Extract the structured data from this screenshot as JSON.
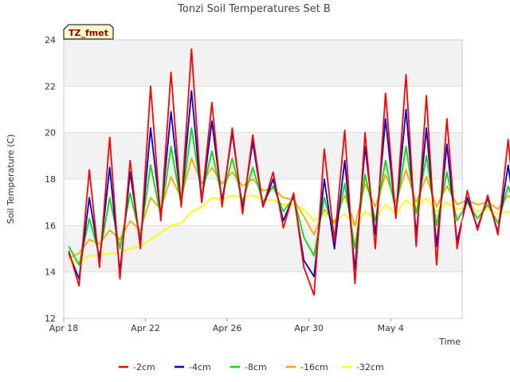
{
  "chart_data": {
    "type": "line",
    "title": "Tonzi Soil Temperatures Set B",
    "xlabel": "Time",
    "ylabel": "Soil Temperature (C)",
    "badge": "TZ_fmet",
    "ylim": [
      12,
      24
    ],
    "xlim": [
      "2024-04-18",
      "2024-05-07T12:00"
    ],
    "yticks": [
      12,
      14,
      16,
      18,
      20,
      22,
      24
    ],
    "xticks": [
      {
        "date": "2024-04-18",
        "label": "Apr 18"
      },
      {
        "date": "2024-04-22",
        "label": "Apr 22"
      },
      {
        "date": "2024-04-26",
        "label": "Apr 26"
      },
      {
        "date": "2024-04-30",
        "label": "Apr 30"
      },
      {
        "date": "2024-05-04",
        "label": "May 4"
      }
    ],
    "grid": true,
    "legend_position": "bottom",
    "time_step_hours": 12,
    "series_start": "2024-04-18T06:00",
    "series": [
      {
        "name": "-2cm",
        "color": "#ff0000",
        "values": [
          14.9,
          13.4,
          18.4,
          14.2,
          19.8,
          13.7,
          18.8,
          15.0,
          22.0,
          16.2,
          22.6,
          16.8,
          23.6,
          17.0,
          21.3,
          16.8,
          20.2,
          16.5,
          19.9,
          16.8,
          18.3,
          15.9,
          17.4,
          14.2,
          13.0,
          19.3,
          15.3,
          20.1,
          13.5,
          20.0,
          15.0,
          21.7,
          16.3,
          22.5,
          15.1,
          21.6,
          14.3,
          20.6,
          15.0,
          17.5,
          15.8,
          17.3,
          15.6,
          19.7,
          15.0
        ]
      },
      {
        "name": "-4cm",
        "color": "#0000cc",
        "values": [
          14.8,
          13.7,
          17.2,
          14.5,
          18.5,
          14.0,
          18.3,
          15.2,
          20.2,
          16.4,
          20.9,
          16.9,
          21.8,
          17.0,
          20.5,
          17.0,
          20.0,
          16.7,
          19.6,
          16.8,
          18.0,
          16.2,
          17.3,
          14.5,
          13.8,
          18.0,
          15.0,
          18.8,
          14.1,
          19.4,
          15.6,
          20.6,
          16.4,
          21.0,
          15.6,
          20.2,
          15.1,
          19.5,
          15.3,
          17.2,
          15.9,
          17.2,
          15.7,
          18.6,
          15.4
        ]
      },
      {
        "name": "-8cm",
        "color": "#00dd00",
        "values": [
          15.1,
          14.3,
          16.3,
          14.7,
          17.2,
          15.0,
          17.4,
          15.5,
          18.6,
          16.4,
          19.4,
          16.9,
          20.2,
          17.3,
          19.2,
          17.2,
          18.9,
          17.0,
          18.5,
          17.0,
          17.7,
          16.6,
          17.2,
          15.5,
          14.7,
          17.2,
          15.6,
          17.8,
          15.0,
          18.2,
          16.2,
          18.8,
          16.6,
          19.4,
          16.5,
          19.0,
          16.0,
          18.3,
          16.2,
          17.0,
          16.3,
          16.9,
          16.1,
          17.7,
          16.4
        ]
      },
      {
        "name": "-16cm",
        "color": "#ffa500",
        "values": [
          14.6,
          14.8,
          15.4,
          15.2,
          15.8,
          15.4,
          16.2,
          15.8,
          17.2,
          16.7,
          18.1,
          17.2,
          18.9,
          17.8,
          18.5,
          17.8,
          18.3,
          17.7,
          18.0,
          17.5,
          17.6,
          17.2,
          17.1,
          16.4,
          15.6,
          16.7,
          16.1,
          17.3,
          16.0,
          17.8,
          16.8,
          18.2,
          17.0,
          18.4,
          17.0,
          18.1,
          16.8,
          17.7,
          16.9,
          17.1,
          16.9,
          17.0,
          16.7,
          17.3,
          16.8
        ]
      },
      {
        "name": "-32cm",
        "color": "#ffff00",
        "values": [
          14.5,
          14.4,
          14.7,
          14.7,
          14.8,
          14.8,
          15.0,
          15.1,
          15.4,
          15.7,
          16.0,
          16.1,
          16.6,
          16.8,
          17.2,
          17.1,
          17.3,
          17.2,
          17.3,
          17.1,
          17.1,
          16.9,
          16.9,
          16.7,
          16.2,
          16.5,
          16.2,
          16.5,
          16.0,
          16.6,
          16.3,
          16.9,
          16.5,
          17.1,
          16.7,
          17.2,
          16.6,
          17.0,
          16.7,
          16.8,
          16.6,
          16.7,
          16.5,
          16.6,
          16.4
        ]
      }
    ]
  }
}
